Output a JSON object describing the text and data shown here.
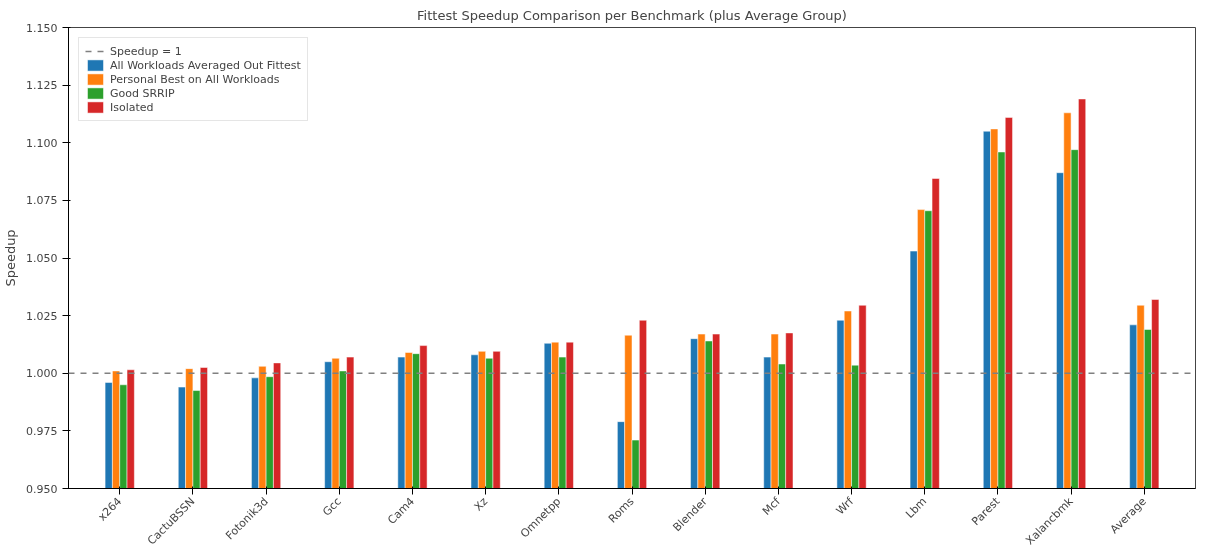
{
  "chart_data": {
    "type": "bar",
    "title": "Fittest Speedup Comparison per Benchmark (plus Average Group)",
    "ylabel": "Speedup",
    "categories": [
      "x264",
      "CactuBSSN",
      "Fotonik3d",
      "Gcc",
      "Cam4",
      "Xz",
      "Omnetpp",
      "Roms",
      "Blender",
      "Mcf",
      "Wrf",
      "Lbm",
      "Parest",
      "Xalancbmk",
      "Average"
    ],
    "series": [
      {
        "name": "All Workloads Averaged Out Fittest",
        "color": "#1f77b4",
        "values": [
          0.996,
          0.994,
          0.998,
          1.005,
          1.007,
          1.008,
          1.013,
          0.979,
          1.015,
          1.007,
          1.023,
          1.053,
          1.105,
          1.087,
          1.021
        ]
      },
      {
        "name": "Personal Best on All Workloads",
        "color": "#ff7f0e",
        "values": [
          1.001,
          1.002,
          1.003,
          1.0065,
          1.009,
          1.0095,
          1.0135,
          1.0165,
          1.017,
          1.017,
          1.027,
          1.071,
          1.106,
          1.113,
          1.0295
        ]
      },
      {
        "name": "Good SRRIP",
        "color": "#2ca02c",
        "values": [
          0.995,
          0.9925,
          0.9985,
          1.001,
          1.0085,
          1.0065,
          1.007,
          0.971,
          1.014,
          1.004,
          1.0035,
          1.0705,
          1.096,
          1.097,
          1.019
        ]
      },
      {
        "name": "Isolated",
        "color": "#d62728",
        "values": [
          1.0015,
          1.0025,
          1.0045,
          1.007,
          1.012,
          1.0095,
          1.0135,
          1.023,
          1.017,
          1.0175,
          1.0295,
          1.0845,
          1.111,
          1.119,
          1.032
        ]
      }
    ],
    "ylim": [
      0.95,
      1.15
    ],
    "yticks": [
      {
        "value": 0.95,
        "label": "0.950"
      },
      {
        "value": 0.975,
        "label": "0.975"
      },
      {
        "value": 1.0,
        "label": "1.000"
      },
      {
        "value": 1.025,
        "label": "1.025"
      },
      {
        "value": 1.05,
        "label": "1.050"
      },
      {
        "value": 1.075,
        "label": "1.075"
      },
      {
        "value": 1.1,
        "label": "1.100"
      },
      {
        "value": 1.125,
        "label": "1.125"
      },
      {
        "value": 1.15,
        "label": "1.150"
      }
    ],
    "ref_lines": [
      {
        "axis": "y",
        "value": 1.0,
        "label": "Speedup = 1",
        "color": "#808080",
        "line_style": "dashed"
      }
    ],
    "legend": "top left",
    "grid": false
  }
}
